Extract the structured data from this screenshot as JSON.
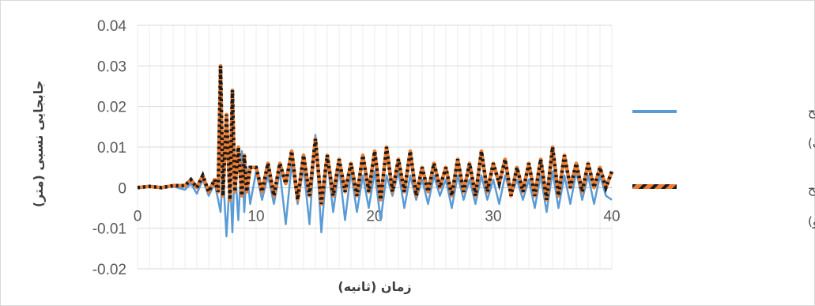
{
  "chart_data": {
    "type": "line",
    "title": "",
    "xlabel": "زمان (ثانیه)",
    "ylabel": "جابجایی نسبی (متر)",
    "xlim": [
      0,
      40
    ],
    "ylim": [
      -0.02,
      0.04
    ],
    "x_ticks": [
      0,
      10,
      20,
      30,
      40
    ],
    "y_ticks": [
      -0.02,
      -0.01,
      0,
      0.01,
      0.02,
      0.03,
      0.04
    ],
    "x_tick_labels": [
      "0",
      "10",
      "20",
      "30",
      "40"
    ],
    "y_tick_labels": [
      "-0.02",
      "-0.01",
      "0",
      "0.01",
      "0.02",
      "0.03",
      "0.04"
    ],
    "grid": true,
    "legend_position": "right",
    "series": [
      {
        "name_line1": "سیستم دوگانه (سطح",
        "name_line2": "خطر یک)",
        "color": "#5b9bd5",
        "style": "solid",
        "x": [
          0,
          1,
          2,
          3,
          4,
          4.5,
          5,
          5.5,
          6,
          6.5,
          6.8,
          7,
          7.2,
          7.5,
          7.8,
          8,
          8.2,
          8.5,
          8.8,
          9,
          9.2,
          9.5,
          10,
          10.5,
          11,
          11.5,
          12,
          12.5,
          13,
          13.5,
          14,
          14.5,
          15,
          15.5,
          16,
          16.5,
          17,
          17.5,
          18,
          18.5,
          19,
          19.5,
          20,
          20.5,
          21,
          21.5,
          22,
          22.5,
          23,
          23.5,
          24,
          24.5,
          25,
          25.5,
          26,
          26.5,
          27,
          27.5,
          28,
          28.5,
          29,
          29.5,
          30,
          30.5,
          31,
          31.5,
          32,
          32.5,
          33,
          33.5,
          34,
          34.5,
          35,
          35.5,
          36,
          36.5,
          37,
          37.5,
          38,
          38.5,
          39,
          39.5,
          40
        ],
        "y": [
          0,
          0.0002,
          -0.0002,
          0.0003,
          -0.0005,
          0.001,
          -0.0015,
          0.002,
          -0.002,
          0.001,
          -0.003,
          -0.006,
          0.004,
          -0.012,
          0.003,
          -0.011,
          0.006,
          -0.008,
          0.009,
          -0.006,
          0.005,
          -0.004,
          0.004,
          -0.003,
          0.003,
          -0.004,
          0.004,
          -0.009,
          0.006,
          -0.004,
          0.005,
          -0.009,
          0.013,
          -0.011,
          0.007,
          -0.006,
          0.005,
          -0.008,
          0.004,
          -0.006,
          0.003,
          -0.005,
          0.004,
          -0.008,
          0.003,
          -0.002,
          0.004,
          -0.005,
          0.003,
          -0.003,
          0.002,
          -0.004,
          0.003,
          -0.002,
          0.002,
          -0.005,
          0.003,
          -0.003,
          0.002,
          -0.004,
          0.003,
          -0.003,
          0.002,
          -0.004,
          0.003,
          -0.002,
          0.002,
          -0.003,
          0.002,
          -0.005,
          0.003,
          -0.006,
          0.004,
          -0.005,
          0.003,
          -0.004,
          0.004,
          -0.003,
          0.003,
          -0.004,
          0.003,
          -0.002,
          -0.003
        ]
      },
      {
        "name_line1": "سیستم دوگانه (سطح",
        "name_line2": "خطر دو)",
        "color": "#ed7d31",
        "style": "dashed",
        "x": [
          0,
          1,
          2,
          3,
          4,
          4.5,
          5,
          5.5,
          6,
          6.5,
          6.8,
          7,
          7.2,
          7.5,
          7.8,
          8,
          8.2,
          8.5,
          8.8,
          9,
          9.2,
          9.5,
          10,
          10.5,
          11,
          11.5,
          12,
          12.5,
          13,
          13.5,
          14,
          14.5,
          15,
          15.5,
          16,
          16.5,
          17,
          17.5,
          18,
          18.5,
          19,
          19.5,
          20,
          20.5,
          21,
          21.5,
          22,
          22.5,
          23,
          23.5,
          24,
          24.5,
          25,
          25.5,
          26,
          26.5,
          27,
          27.5,
          28,
          28.5,
          29,
          29.5,
          30,
          30.5,
          31,
          31.5,
          32,
          32.5,
          33,
          33.5,
          34,
          34.5,
          35,
          35.5,
          36,
          36.5,
          37,
          37.5,
          38,
          38.5,
          39,
          39.5,
          40
        ],
        "y": [
          0,
          0.0003,
          0,
          0.0005,
          0.0005,
          0.002,
          0,
          0.003,
          -0.001,
          0.002,
          -0.001,
          0.03,
          -0.002,
          0.018,
          -0.003,
          0.024,
          -0.001,
          0.01,
          -0.002,
          0.008,
          -0.001,
          0.005,
          0.005,
          -0.001,
          0.006,
          -0.002,
          0.006,
          0.001,
          0.009,
          -0.003,
          0.008,
          -0.002,
          0.012,
          -0.004,
          0.008,
          -0.002,
          0.007,
          -0.001,
          0.006,
          -0.002,
          0.008,
          -0.001,
          0.009,
          -0.003,
          0.01,
          -0.001,
          0.007,
          -0.001,
          0.009,
          -0.002,
          0.005,
          -0.001,
          0.006,
          0,
          0.005,
          -0.002,
          0.007,
          -0.001,
          0.006,
          -0.002,
          0.009,
          -0.001,
          0.006,
          0.001,
          0.007,
          -0.002,
          0.005,
          -0.001,
          0.006,
          -0.002,
          0.007,
          -0.003,
          0.01,
          -0.002,
          0.008,
          0,
          0.006,
          -0.001,
          0.006,
          0,
          0.005,
          0,
          0.004
        ]
      }
    ]
  }
}
